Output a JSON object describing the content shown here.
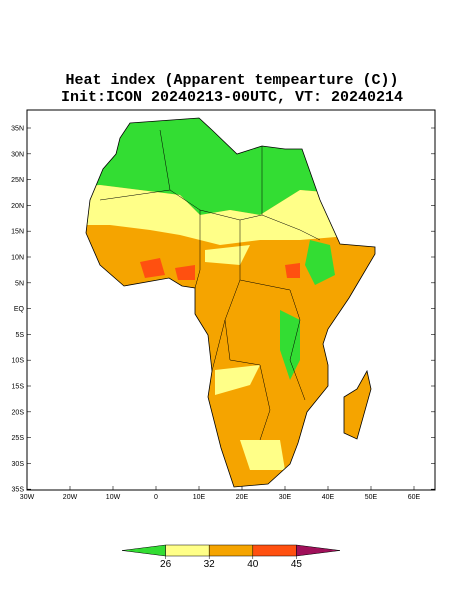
{
  "map": {
    "title": "Heat index (Apparent tempearture (C))",
    "subtitle": "Init:ICON 20240213-00UTC, VT: 20240214",
    "lat_ticks": [
      {
        "value": 35,
        "label": "35N"
      },
      {
        "value": 30,
        "label": "30N"
      },
      {
        "value": 25,
        "label": "25N"
      },
      {
        "value": 20,
        "label": "20N"
      },
      {
        "value": 15,
        "label": "15N"
      },
      {
        "value": 10,
        "label": "10N"
      },
      {
        "value": 5,
        "label": "5N"
      },
      {
        "value": 0,
        "label": "EQ"
      },
      {
        "value": -5,
        "label": "5S"
      },
      {
        "value": -10,
        "label": "10S"
      },
      {
        "value": -15,
        "label": "15S"
      },
      {
        "value": -20,
        "label": "20S"
      },
      {
        "value": -25,
        "label": "25S"
      },
      {
        "value": -30,
        "label": "30S"
      },
      {
        "value": -35,
        "label": "35S"
      }
    ],
    "lon_ticks": [
      {
        "value": -30,
        "label": "30W"
      },
      {
        "value": -20,
        "label": "20W"
      },
      {
        "value": -10,
        "label": "10W"
      },
      0,
      {
        "value": 10,
        "label": "10E"
      },
      {
        "value": 20,
        "label": "20E"
      },
      {
        "value": 30,
        "label": "30E"
      },
      {
        "value": 40,
        "label": "40E"
      },
      {
        "value": 50,
        "label": "50E"
      },
      {
        "value": 60,
        "label": "60E"
      }
    ],
    "colorbar": {
      "colors": [
        "#33dd33",
        "#ffff88",
        "#f5a400",
        "#ff5010",
        "#a0105a"
      ],
      "ticks": [
        26,
        32,
        40,
        45
      ]
    }
  }
}
